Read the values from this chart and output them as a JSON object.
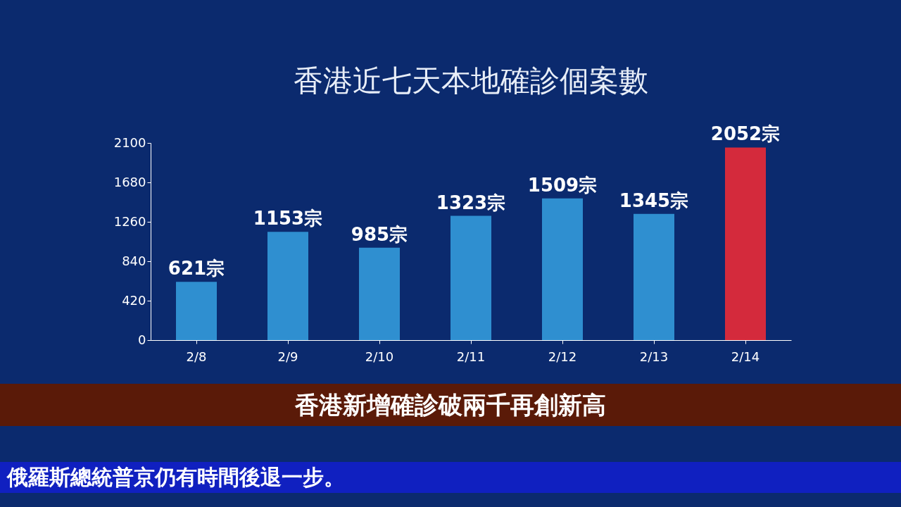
{
  "chart_data": {
    "type": "bar",
    "title": "香港近七天本地確診個案數",
    "categories": [
      "2/8",
      "2/9",
      "2/10",
      "2/11",
      "2/12",
      "2/13",
      "2/14"
    ],
    "values": [
      621,
      1153,
      985,
      1323,
      1509,
      1345,
      2052
    ],
    "value_labels": [
      "621宗",
      "1153宗",
      "985宗",
      "1323宗",
      "1509宗",
      "1345宗",
      "2052宗"
    ],
    "colors": [
      "#2f8fd0",
      "#2f8fd0",
      "#2f8fd0",
      "#2f8fd0",
      "#2f8fd0",
      "#2f8fd0",
      "#d42a3c"
    ],
    "ylim": [
      0,
      2100
    ],
    "yticks": [
      0,
      420,
      840,
      1260,
      1680,
      2100
    ],
    "grid": false,
    "annotations": [
      "香港新增確診破兩千再創新高",
      "俄羅斯總統普京仍有時間後退一步。"
    ]
  }
}
